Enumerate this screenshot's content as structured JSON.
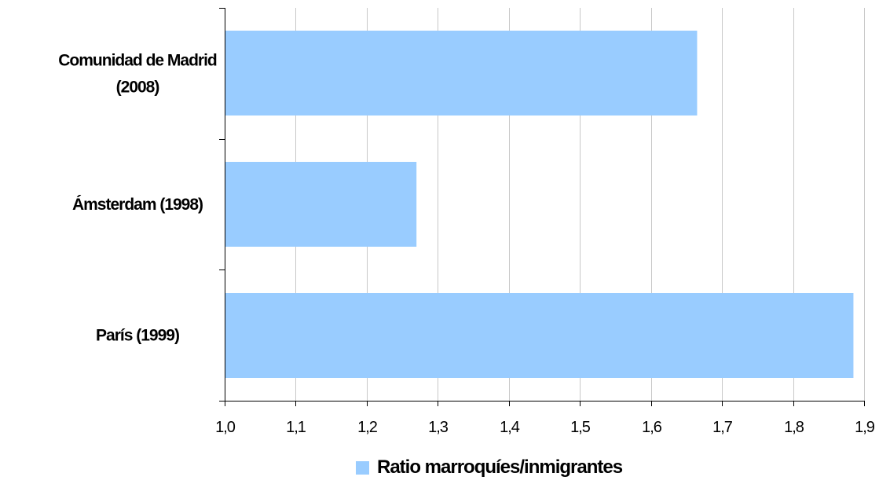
{
  "chart_data": {
    "type": "bar",
    "orientation": "horizontal",
    "categories": [
      "Comunidad de Madrid (2008)",
      "Ámsterdam (1998)",
      "París (1999)"
    ],
    "category_lines": [
      [
        "Comunidad de Madrid",
        "(2008)"
      ],
      [
        "Ámsterdam (1998)"
      ],
      [
        "París (1999)"
      ]
    ],
    "series": [
      {
        "name": "Ratio marroquíes/inmigrantes",
        "values": [
          1.665,
          1.27,
          1.885
        ],
        "color": "#99ccff"
      }
    ],
    "xlim": [
      1.0,
      1.9
    ],
    "xticks": [
      "1,0",
      "1,1",
      "1,2",
      "1,3",
      "1,4",
      "1,5",
      "1,6",
      "1,7",
      "1,8",
      "1,9"
    ],
    "grid": true,
    "legend_position": "bottom"
  }
}
